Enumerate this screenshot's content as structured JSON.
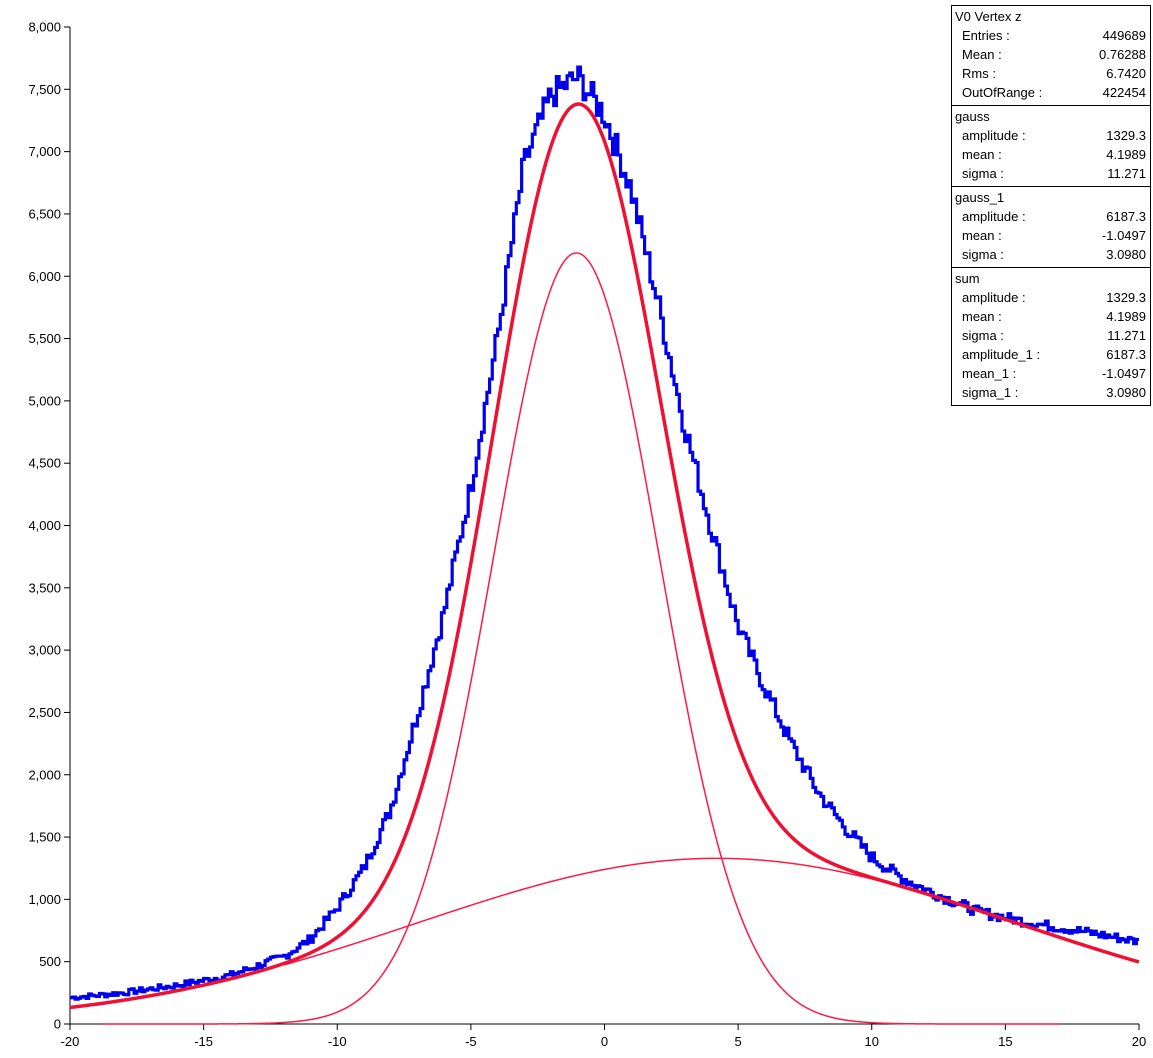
{
  "chart_data": {
    "type": "histogram",
    "xlim": [
      -20,
      20
    ],
    "ylim": [
      0,
      8000
    ],
    "x_ticks": [
      -20,
      -15,
      -10,
      -5,
      0,
      5,
      10,
      15,
      20
    ],
    "y_ticks": [
      0,
      500,
      1000,
      1500,
      2000,
      2500,
      3000,
      3500,
      4000,
      4500,
      5000,
      5500,
      6000,
      6500,
      7000,
      7500,
      8000
    ],
    "y_tick_labels": [
      "0",
      "500",
      "1,000",
      "1,500",
      "2,000",
      "2,500",
      "3,000",
      "3,500",
      "4,000",
      "4,500",
      "5,000",
      "5,500",
      "6,000",
      "6,500",
      "7,000",
      "7,500",
      "8,000"
    ],
    "grid": false,
    "histogram": {
      "color": "#0000ee",
      "x": [
        -20,
        -18,
        -16,
        -14,
        -12,
        -11,
        -10,
        -9,
        -8,
        -7,
        -6,
        -5,
        -4,
        -3,
        -2,
        -1,
        0,
        1,
        2,
        3,
        4,
        5,
        6,
        7,
        8,
        9,
        10,
        11,
        12,
        14,
        16,
        18,
        20
      ],
      "y": [
        210,
        250,
        310,
        390,
        540,
        680,
        930,
        1250,
        1720,
        2480,
        3300,
        4300,
        5500,
        6900,
        7450,
        7600,
        7300,
        6700,
        5800,
        4800,
        3980,
        3200,
        2700,
        2250,
        1860,
        1580,
        1340,
        1190,
        1080,
        900,
        810,
        740,
        660
      ]
    },
    "fits": [
      {
        "name": "gauss",
        "color": "#ff1a44",
        "amplitude": 1329.3,
        "mean": 4.1989,
        "sigma": 11.271,
        "x_range": [
          -12,
          17
        ],
        "line_width": 1.5
      },
      {
        "name": "gauss_1",
        "color": "#ff1a44",
        "amplitude": 6187.3,
        "mean": -1.0497,
        "sigma": 3.098,
        "x_range": [
          -18.8,
          17
        ],
        "line_width": 1.5
      },
      {
        "name": "sum",
        "color": "#ee1133",
        "amplitude": 1329.3,
        "mean": 4.1989,
        "sigma": 11.271,
        "amplitude_1": 6187.3,
        "mean_1": -1.0497,
        "sigma_1": 3.098,
        "x_range": [
          -20,
          20
        ],
        "line_width": 3.5
      }
    ]
  },
  "stats": [
    {
      "title": "V0 Vertex z",
      "rows": [
        {
          "label": "Entries :",
          "value": "449689"
        },
        {
          "label": "Mean :",
          "value": "0.76288"
        },
        {
          "label": "Rms :",
          "value": "6.7420"
        },
        {
          "label": "OutOfRange :",
          "value": "422454"
        }
      ]
    },
    {
      "title": "gauss",
      "rows": [
        {
          "label": "amplitude :",
          "value": "1329.3"
        },
        {
          "label": "mean :",
          "value": "4.1989"
        },
        {
          "label": "sigma :",
          "value": "11.271"
        }
      ]
    },
    {
      "title": "gauss_1",
      "rows": [
        {
          "label": "amplitude :",
          "value": "6187.3"
        },
        {
          "label": "mean :",
          "value": "-1.0497"
        },
        {
          "label": "sigma :",
          "value": "3.0980"
        }
      ]
    },
    {
      "title": "sum",
      "rows": [
        {
          "label": "amplitude :",
          "value": "1329.3"
        },
        {
          "label": "mean :",
          "value": "4.1989"
        },
        {
          "label": "sigma :",
          "value": "11.271"
        },
        {
          "label": "amplitude_1 :",
          "value": "6187.3"
        },
        {
          "label": "mean_1 :",
          "value": "-1.0497"
        },
        {
          "label": "sigma_1 :",
          "value": "3.0980"
        }
      ]
    }
  ]
}
